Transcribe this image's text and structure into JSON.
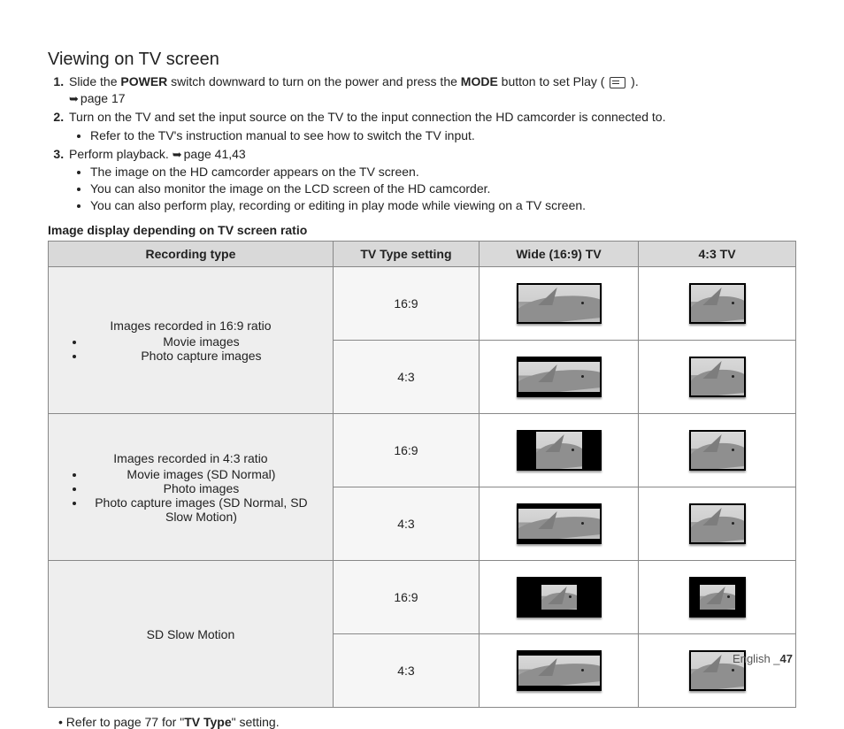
{
  "heading": "Viewing on TV screen",
  "step1_a": "Slide the ",
  "step1_power": "POWER",
  "step1_b": " switch downward to turn on the power and press the ",
  "step1_mode": "MODE",
  "step1_c": " button to set Play ( ",
  "step1_d": " ).",
  "step1_ref": "page 17",
  "step2": "Turn on the TV and set the input source on the TV to the input connection the HD camcorder is connected to.",
  "step2_b1": "Refer to the TV's instruction manual to see how to switch the TV input.",
  "step3_a": "Perform playback. ",
  "step3_ref": "page 41,43",
  "step3_b1": "The image on the HD camcorder appears on the TV screen.",
  "step3_b2": "You can also monitor the image on the LCD screen of the HD camcorder.",
  "step3_b3": "You can also perform play, recording or editing in play mode while viewing on a TV screen.",
  "subheading": "Image display depending on TV screen ratio",
  "th1": "Recording type",
  "th2": "TV Type setting",
  "th3": "Wide (16:9) TV",
  "th4": "4:3 TV",
  "row1_title": "Images recorded in 16:9 ratio",
  "row1_li1": "Movie images",
  "row1_li2": "Photo capture images",
  "row2_title": "Images recorded in 4:3 ratio",
  "row2_li1": "Movie images (SD Normal)",
  "row2_li2": "Photo images",
  "row2_li3": "Photo capture images (SD Normal, SD Slow Motion)",
  "row3_title": "SD Slow Motion",
  "tvt_169": "16:9",
  "tvt_43": "4:3",
  "footnote_a": "Refer to page 77 for \"",
  "footnote_b": "TV Type",
  "footnote_c": "\" setting.",
  "footer_a": "English _",
  "footer_b": "47",
  "thumbs": {
    "wide_outer_w": 92,
    "wide_outer_h": 42,
    "std_outer_w": 60,
    "std_outer_h": 42,
    "letterbox_inner_h": 34,
    "pillar43_inner_w": 52,
    "small_inner_w": 40,
    "small_inner_h": 28
  }
}
